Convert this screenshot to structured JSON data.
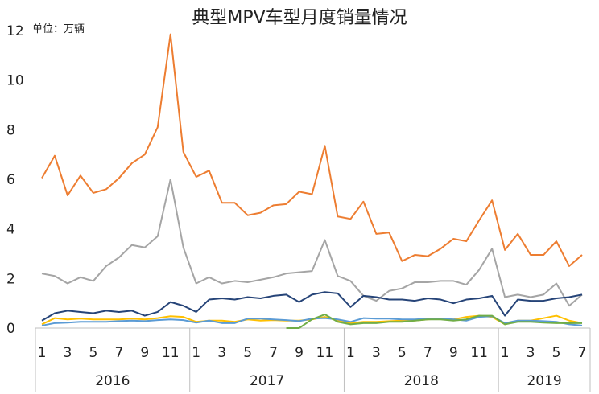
{
  "chart_data": {
    "type": "line",
    "title": "典型MPV车型月度销量情况",
    "unit_label": "单位：万辆",
    "ylim": [
      0,
      12
    ],
    "y_ticks": [
      0,
      2,
      4,
      6,
      8,
      10,
      12
    ],
    "x_tick_labels": [
      "1",
      "3",
      "5",
      "7",
      "9",
      "11",
      "1",
      "3",
      "5",
      "7",
      "9",
      "11",
      "1",
      "3",
      "5",
      "7",
      "9",
      "11",
      "1",
      "3",
      "5",
      "7"
    ],
    "year_groups": [
      {
        "label": "2016",
        "months": 12
      },
      {
        "label": "2017",
        "months": 12
      },
      {
        "label": "2018",
        "months": 12
      },
      {
        "label": "2019",
        "months": 7
      }
    ],
    "grid": false,
    "legend": "none",
    "series": [
      {
        "color": "#ED7D31",
        "values": [
          6.05,
          6.95,
          5.35,
          6.15,
          5.45,
          5.6,
          6.05,
          6.65,
          7.0,
          8.1,
          11.85,
          7.1,
          6.1,
          6.35,
          5.05,
          5.05,
          4.55,
          4.65,
          4.95,
          5.0,
          5.5,
          5.4,
          7.35,
          4.5,
          4.4,
          5.1,
          3.8,
          3.85,
          2.7,
          2.95,
          2.9,
          3.2,
          3.6,
          3.5,
          4.35,
          5.15,
          3.15,
          3.8,
          2.95,
          2.95,
          3.5,
          2.5,
          2.95
        ]
      },
      {
        "color": "#A5A5A5",
        "values": [
          2.2,
          2.1,
          1.8,
          2.05,
          1.9,
          2.5,
          2.85,
          3.35,
          3.25,
          3.7,
          6.0,
          3.25,
          1.8,
          2.05,
          1.8,
          1.9,
          1.85,
          1.95,
          2.05,
          2.2,
          2.25,
          2.3,
          3.55,
          2.1,
          1.9,
          1.3,
          1.1,
          1.5,
          1.6,
          1.85,
          1.85,
          1.9,
          1.9,
          1.75,
          2.35,
          3.2,
          1.25,
          1.35,
          1.25,
          1.35,
          1.8,
          0.9,
          1.35
        ]
      },
      {
        "color": "#264478",
        "values": [
          0.3,
          0.6,
          0.7,
          0.65,
          0.6,
          0.7,
          0.65,
          0.7,
          0.5,
          0.65,
          1.05,
          0.9,
          0.65,
          1.15,
          1.2,
          1.15,
          1.25,
          1.2,
          1.3,
          1.35,
          1.05,
          1.35,
          1.45,
          1.4,
          0.85,
          1.3,
          1.25,
          1.15,
          1.15,
          1.1,
          1.2,
          1.15,
          1.0,
          1.15,
          1.2,
          1.3,
          0.5,
          1.15,
          1.1,
          1.1,
          1.2,
          1.25,
          1.35
        ]
      },
      {
        "color": "#FFC000",
        "values": [
          0.15,
          0.4,
          0.35,
          0.38,
          0.35,
          0.35,
          0.35,
          0.38,
          0.35,
          0.4,
          0.48,
          0.45,
          0.25,
          0.3,
          0.3,
          0.25,
          0.35,
          0.3,
          0.32,
          0.3,
          0.3,
          0.35,
          0.45,
          0.3,
          0.2,
          0.25,
          0.25,
          0.28,
          0.3,
          0.3,
          0.35,
          0.38,
          0.35,
          0.45,
          0.5,
          0.45,
          0.15,
          0.3,
          0.3,
          0.4,
          0.5,
          0.3,
          0.2
        ]
      },
      {
        "color": "#5B9BD5",
        "values": [
          0.1,
          0.2,
          0.22,
          0.25,
          0.25,
          0.25,
          0.28,
          0.3,
          0.28,
          0.32,
          0.35,
          0.32,
          0.22,
          0.3,
          0.2,
          0.2,
          0.38,
          0.38,
          0.35,
          0.32,
          0.28,
          0.38,
          0.4,
          0.35,
          0.25,
          0.4,
          0.38,
          0.38,
          0.35,
          0.35,
          0.38,
          0.38,
          0.35,
          0.3,
          0.45,
          0.48,
          0.2,
          0.3,
          0.3,
          0.28,
          0.25,
          0.15,
          0.1
        ]
      },
      {
        "color": "#70AD47",
        "values": [
          null,
          null,
          null,
          null,
          null,
          null,
          null,
          null,
          null,
          null,
          null,
          null,
          null,
          null,
          null,
          null,
          null,
          null,
          null,
          0.0,
          0.0,
          0.35,
          0.55,
          0.25,
          0.15,
          0.2,
          0.2,
          0.25,
          0.25,
          0.3,
          0.35,
          0.35,
          0.3,
          0.35,
          0.5,
          0.5,
          0.15,
          0.25,
          0.25,
          0.22,
          0.2,
          0.2,
          0.2
        ]
      }
    ]
  }
}
